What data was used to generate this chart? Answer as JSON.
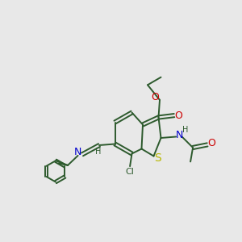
{
  "background_color": "#e8e8e8",
  "bond_color": "#2d5a2d",
  "sulfur_color": "#b8b800",
  "nitrogen_color": "#0000cc",
  "oxygen_color": "#cc0000",
  "font_size": 8,
  "lw": 1.4,
  "figsize": [
    3.0,
    3.0
  ],
  "dpi": 100,
  "xlim": [
    0,
    10
  ],
  "ylim": [
    0,
    10
  ]
}
